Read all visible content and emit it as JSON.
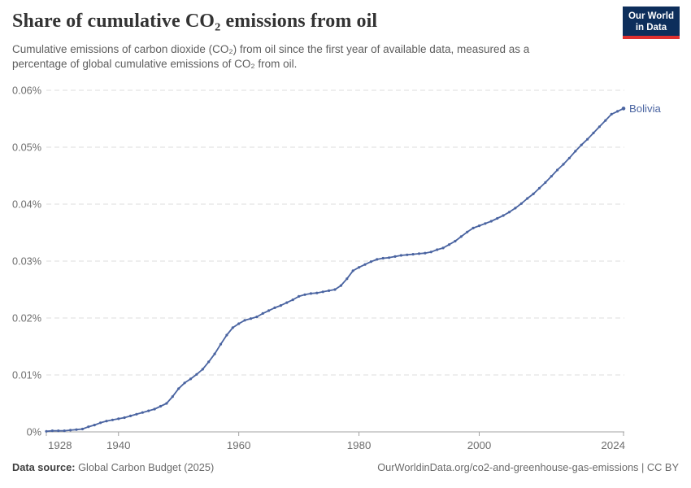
{
  "header": {
    "title": "Share of cumulative CO₂ emissions from oil",
    "subtitle": "Cumulative emissions of carbon dioxide (CO₂) from oil since the first year of available data, measured as a percentage of global cumulative emissions of CO₂ from oil.",
    "logo": {
      "line1": "Our World",
      "line2": "in Data"
    }
  },
  "footer": {
    "source_label": "Data source:",
    "source_value": " Global Carbon Budget (2025)",
    "link": "OurWorldinData.org/co2-and-greenhouse-gas-emissions | CC BY"
  },
  "chart_data": {
    "type": "line",
    "title": "Share of cumulative CO₂ emissions from oil",
    "xlabel": "",
    "ylabel": "",
    "xlim": [
      1928,
      2024
    ],
    "ylim": [
      0,
      0.06
    ],
    "grid": "horizontal-dashed",
    "legend_position": "end-of-line-label",
    "x_ticks": [
      {
        "value": 1928,
        "label": "1928"
      },
      {
        "value": 1940,
        "label": "1940"
      },
      {
        "value": 1960,
        "label": "1960"
      },
      {
        "value": 1980,
        "label": "1980"
      },
      {
        "value": 2000,
        "label": "2000"
      },
      {
        "value": 2024,
        "label": "2024"
      }
    ],
    "y_ticks": [
      {
        "value": 0,
        "label": "0%"
      },
      {
        "value": 0.01,
        "label": "0.01%"
      },
      {
        "value": 0.02,
        "label": "0.02%"
      },
      {
        "value": 0.03,
        "label": "0.03%"
      },
      {
        "value": 0.04,
        "label": "0.04%"
      },
      {
        "value": 0.05,
        "label": "0.05%"
      },
      {
        "value": 0.06,
        "label": "0.06%"
      }
    ],
    "series": [
      {
        "name": "Bolivia",
        "end_label": "Bolivia",
        "color": "#4a64a1",
        "x": [
          1928,
          1929,
          1930,
          1931,
          1932,
          1933,
          1934,
          1935,
          1936,
          1937,
          1938,
          1939,
          1940,
          1941,
          1942,
          1943,
          1944,
          1945,
          1946,
          1947,
          1948,
          1949,
          1950,
          1951,
          1952,
          1953,
          1954,
          1955,
          1956,
          1957,
          1958,
          1959,
          1960,
          1961,
          1962,
          1963,
          1964,
          1965,
          1966,
          1967,
          1968,
          1969,
          1970,
          1971,
          1972,
          1973,
          1974,
          1975,
          1976,
          1977,
          1978,
          1979,
          1980,
          1981,
          1982,
          1983,
          1984,
          1985,
          1986,
          1987,
          1988,
          1989,
          1990,
          1991,
          1992,
          1993,
          1994,
          1995,
          1996,
          1997,
          1998,
          1999,
          2000,
          2001,
          2002,
          2003,
          2004,
          2005,
          2006,
          2007,
          2008,
          2009,
          2010,
          2011,
          2012,
          2013,
          2014,
          2015,
          2016,
          2017,
          2018,
          2019,
          2020,
          2021,
          2022,
          2023,
          2024
        ],
        "values": [
          0.0001,
          0.0002,
          0.0002,
          0.0002,
          0.0003,
          0.0004,
          0.0005,
          0.0009,
          0.0012,
          0.0016,
          0.0019,
          0.0021,
          0.0023,
          0.0025,
          0.0028,
          0.0031,
          0.0034,
          0.0037,
          0.004,
          0.0045,
          0.005,
          0.0062,
          0.0076,
          0.0086,
          0.0093,
          0.0101,
          0.011,
          0.0123,
          0.0137,
          0.0154,
          0.017,
          0.0183,
          0.019,
          0.0196,
          0.0199,
          0.0202,
          0.0208,
          0.0213,
          0.0218,
          0.0222,
          0.0227,
          0.0232,
          0.0238,
          0.0241,
          0.0243,
          0.0244,
          0.0246,
          0.0248,
          0.025,
          0.0257,
          0.0269,
          0.0283,
          0.0289,
          0.0294,
          0.0299,
          0.0303,
          0.0305,
          0.0306,
          0.0308,
          0.031,
          0.0311,
          0.0312,
          0.0313,
          0.0314,
          0.0316,
          0.032,
          0.0323,
          0.0329,
          0.0335,
          0.0343,
          0.0351,
          0.0358,
          0.0362,
          0.0366,
          0.037,
          0.0375,
          0.038,
          0.0386,
          0.0393,
          0.0401,
          0.041,
          0.0418,
          0.0428,
          0.0438,
          0.0449,
          0.046,
          0.047,
          0.0481,
          0.0493,
          0.0504,
          0.0514,
          0.0525,
          0.0536,
          0.0547,
          0.0558,
          0.0563,
          0.0568
        ]
      }
    ],
    "colors": {
      "line": "#4a64a1",
      "grid": "#dcdcdc",
      "axis": "#a3a3a3",
      "tick_label": "#6e6e6e",
      "end_label": "#4a64a1"
    }
  }
}
